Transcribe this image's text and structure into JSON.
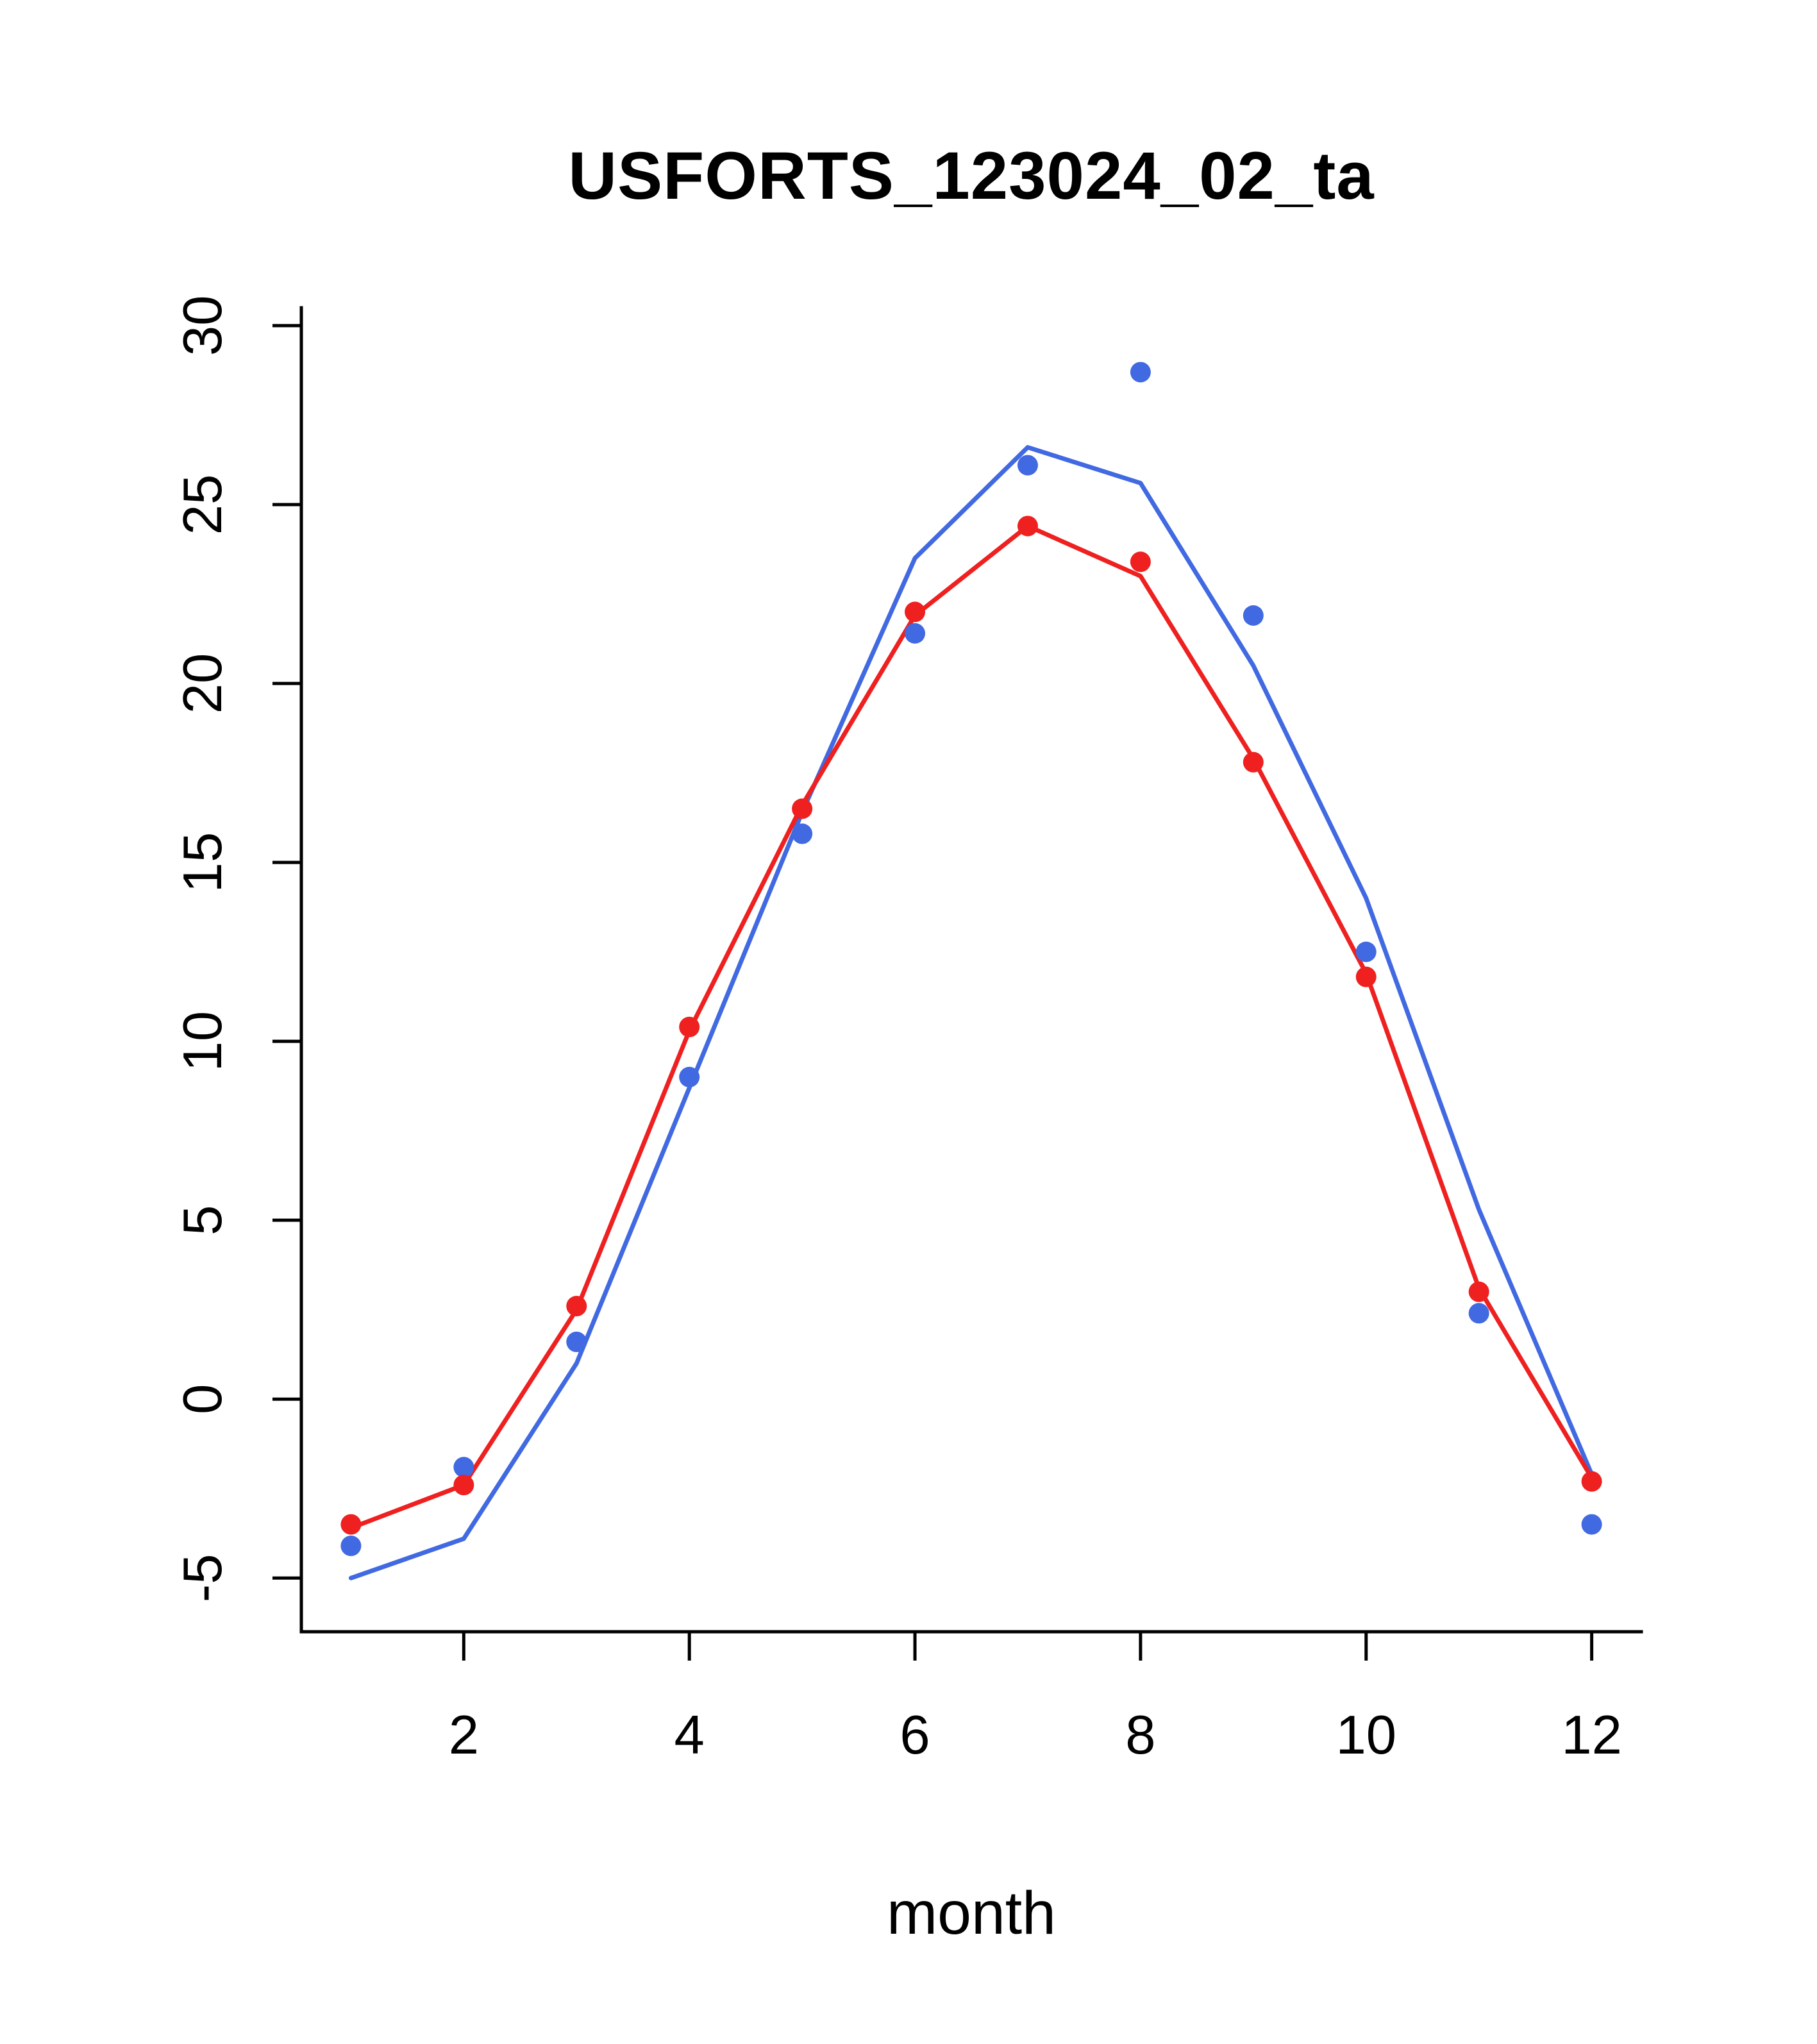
{
  "chart_data": {
    "type": "line",
    "title": "USFORTS_123024_02_ta",
    "xlabel": "month",
    "ylabel": "",
    "x": [
      1,
      2,
      3,
      4,
      5,
      6,
      7,
      8,
      9,
      10,
      11,
      12
    ],
    "xlim": [
      0.56,
      12.44
    ],
    "ylim": [
      -6.5,
      30.5
    ],
    "x_ticks": [
      2,
      4,
      6,
      8,
      10,
      12
    ],
    "y_ticks": [
      -5,
      0,
      5,
      10,
      15,
      20,
      25,
      30
    ],
    "grid": false,
    "legend": "none",
    "series": [
      {
        "name": "blue-fit-line",
        "draw": "line",
        "color": "#4169E1",
        "values": [
          -5.0,
          -3.9,
          1.0,
          8.7,
          16.4,
          23.5,
          26.6,
          25.6,
          20.5,
          14.0,
          5.3,
          -2.1
        ]
      },
      {
        "name": "red-fit-line",
        "draw": "line",
        "color": "#EE2020",
        "values": [
          -3.6,
          -2.4,
          2.5,
          10.3,
          16.6,
          21.9,
          24.4,
          23.0,
          17.9,
          11.9,
          3.1,
          -2.2
        ]
      },
      {
        "name": "blue-observed-points",
        "draw": "points",
        "color": "#4169E1",
        "values": [
          -4.1,
          -1.9,
          1.6,
          9.0,
          15.8,
          21.4,
          26.1,
          28.7,
          21.9,
          12.5,
          2.4,
          -3.5
        ]
      },
      {
        "name": "red-observed-points",
        "draw": "points",
        "color": "#EE2020",
        "values": [
          -3.5,
          -2.4,
          2.6,
          10.4,
          16.5,
          22.0,
          24.4,
          23.4,
          17.8,
          11.8,
          3.0,
          -2.3
        ]
      }
    ]
  },
  "colors": {
    "blue": "#4169E1",
    "red": "#EE2020",
    "axis": "#000000",
    "background": "#FFFFFF"
  }
}
